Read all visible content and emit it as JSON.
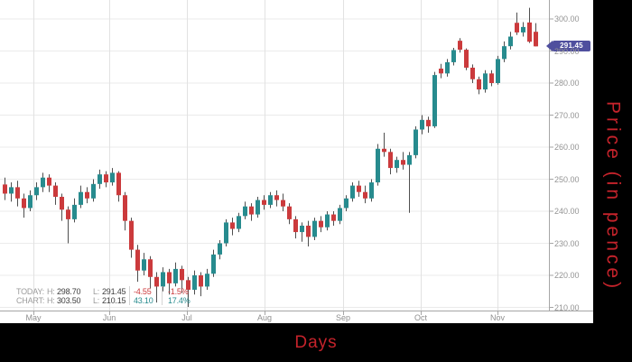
{
  "chart_data": {
    "type": "candlestick",
    "title": "",
    "xlabel": "Days",
    "ylabel": "Price (in pence)",
    "x_tick_labels": [
      "May",
      "Jun",
      "Jul",
      "Aug",
      "Sep",
      "Oct",
      "Nov"
    ],
    "y_tick_labels": [
      "300.00",
      "290.00",
      "280.00",
      "270.00",
      "260.00",
      "250.00",
      "240.00",
      "230.00",
      "220.00",
      "210.00"
    ],
    "y_tick_values": [
      300,
      290,
      280,
      270,
      260,
      250,
      240,
      230,
      220,
      210
    ],
    "ylim": [
      208,
      306
    ],
    "grid": true,
    "legend_position": "bottom-left",
    "last_price": "291.45",
    "legend_rows": [
      {
        "name": "TODAY:",
        "h_label": "H:",
        "h": "298.70",
        "l_label": "L:",
        "l": "291.45",
        "chg": "-4.55",
        "pct": "-1.5%",
        "tone": "down"
      },
      {
        "name": "CHART:",
        "h_label": "H:",
        "h": "303.50",
        "l_label": "L:",
        "l": "210.15",
        "chg": "43.10",
        "pct": "17.4%",
        "tone": "up"
      }
    ],
    "colors": {
      "up": "#278b8e",
      "down": "#cb3a3c",
      "wick": "#4f4f4f",
      "last_price_tag": "#4f4f9e",
      "axis_title": "#c5232b",
      "tick_label": "#949494",
      "grid_line": "#ebebeb",
      "grid_line_vertical": "#e2e2e2",
      "axis_line": "#a6a6a6",
      "legend_label": "#9b9b9b",
      "legend_value": "#3d3d3d"
    },
    "candles_ohlc": [
      [
        248.35,
        250.5,
        243.5,
        245.5
      ],
      [
        245.5,
        249,
        243,
        247.5
      ],
      [
        247.5,
        249.5,
        241.5,
        244
      ],
      [
        244,
        245.5,
        238,
        241
      ],
      [
        241,
        246.5,
        240,
        245
      ],
      [
        245,
        249,
        243.5,
        247.5
      ],
      [
        247.5,
        252,
        246,
        250.5
      ],
      [
        250.5,
        251.5,
        246,
        248
      ],
      [
        248,
        249,
        242,
        244.5
      ],
      [
        244.5,
        245.5,
        237,
        240.5
      ],
      [
        240.5,
        241.5,
        230,
        237.5
      ],
      [
        237.5,
        244,
        236.5,
        242
      ],
      [
        242,
        248,
        241,
        246
      ],
      [
        246,
        247.5,
        242.5,
        244
      ],
      [
        244,
        250,
        243,
        248.5
      ],
      [
        248.5,
        253,
        247,
        251.5
      ],
      [
        251.5,
        252.5,
        247.5,
        249
      ],
      [
        249,
        253.5,
        248,
        252
      ],
      [
        252,
        252.5,
        243,
        245
      ],
      [
        245,
        246,
        234,
        237
      ],
      [
        237,
        238,
        225.5,
        228
      ],
      [
        228,
        229.5,
        218,
        221.5
      ],
      [
        221.5,
        227,
        220,
        225
      ],
      [
        225,
        226,
        216,
        219.5
      ],
      [
        219.5,
        221,
        211.5,
        216.5
      ],
      [
        216.5,
        222.5,
        215,
        221
      ],
      [
        221,
        222,
        214,
        217.5
      ],
      [
        217.5,
        224,
        216.5,
        222
      ],
      [
        222,
        223,
        214.5,
        218.5
      ],
      [
        218.5,
        219.5,
        210.15,
        215.5
      ],
      [
        215.5,
        221.5,
        214,
        220
      ],
      [
        220,
        221,
        213.5,
        216.5
      ],
      [
        216.5,
        222,
        215.5,
        220.5
      ],
      [
        220.5,
        228,
        219.5,
        226.5
      ],
      [
        226.5,
        231,
        225,
        230
      ],
      [
        230,
        237.5,
        229,
        236.5
      ],
      [
        236.5,
        238,
        232.5,
        234.5
      ],
      [
        234.5,
        239.5,
        233.5,
        238.5
      ],
      [
        238.5,
        243,
        237.5,
        241.5
      ],
      [
        241.5,
        242.5,
        237,
        239
      ],
      [
        239,
        244.5,
        238,
        243.5
      ],
      [
        243.5,
        245,
        240.5,
        242
      ],
      [
        242,
        246,
        241,
        245
      ],
      [
        245,
        246.5,
        241.5,
        243.5
      ],
      [
        243.5,
        245.5,
        240,
        241.5
      ],
      [
        241.5,
        242.5,
        236,
        237.5
      ],
      [
        237.5,
        238.5,
        231.5,
        233.5
      ],
      [
        233.5,
        236.5,
        230.5,
        235.5
      ],
      [
        235.5,
        237,
        229,
        232
      ],
      [
        232,
        238,
        231,
        237
      ],
      [
        237,
        238.5,
        233.5,
        235
      ],
      [
        235,
        240,
        234,
        239
      ],
      [
        239,
        240,
        235.5,
        237
      ],
      [
        237,
        242,
        236,
        241
      ],
      [
        241,
        245,
        240,
        244
      ],
      [
        244,
        249,
        243,
        248
      ],
      [
        248,
        249.5,
        244.5,
        246
      ],
      [
        246,
        248,
        242.5,
        244
      ],
      [
        244,
        250,
        243,
        249
      ],
      [
        249,
        261,
        248,
        259.5
      ],
      [
        259.5,
        264.5,
        257,
        258.5
      ],
      [
        258.5,
        259.5,
        251.5,
        253.5
      ],
      [
        253.5,
        257,
        252,
        256
      ],
      [
        256,
        258.5,
        253,
        254.5
      ],
      [
        254.5,
        258.5,
        239.5,
        257.5
      ],
      [
        257.5,
        266.5,
        256.5,
        265.5
      ],
      [
        265.5,
        270,
        264,
        268.5
      ],
      [
        268.5,
        269.5,
        264.5,
        266.5
      ],
      [
        266.5,
        283.5,
        266,
        282.5
      ],
      [
        284.5,
        286,
        281.5,
        283
      ],
      [
        283,
        287.5,
        282,
        286.5
      ],
      [
        286.5,
        291,
        285.5,
        290.3
      ],
      [
        293.2,
        294,
        289.5,
        290.4
      ],
      [
        290.4,
        290.8,
        284,
        284.8
      ],
      [
        284.8,
        285.8,
        280,
        281.2
      ],
      [
        281.2,
        282,
        276.5,
        278
      ],
      [
        278,
        284,
        277,
        283
      ],
      [
        283,
        284,
        279,
        280
      ],
      [
        280,
        288.5,
        279.5,
        287.5
      ],
      [
        287.5,
        293,
        286.5,
        291.5
      ],
      [
        291.5,
        296,
        290.5,
        294.5
      ],
      [
        298.8,
        302,
        295,
        295.8
      ],
      [
        295.8,
        299,
        294.5,
        297.5
      ],
      [
        298.9,
        303.5,
        292.5,
        292.9
      ],
      [
        296,
        298.7,
        291.45,
        291.45
      ]
    ]
  }
}
